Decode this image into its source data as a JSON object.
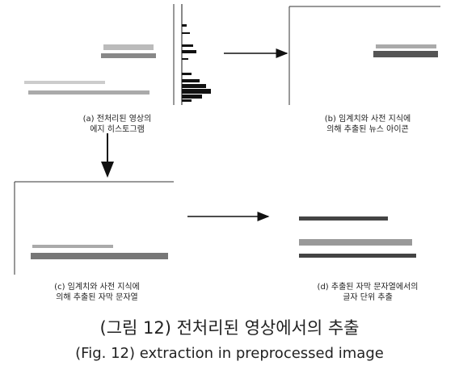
{
  "panels": [
    {
      "caption": [
        "(a) 전처리된 영상의",
        "에지 히스토그램"
      ]
    },
    {
      "caption": [
        "(b) 임계치와 사전 지식에",
        "의해 추출된 뉴스 아이콘"
      ]
    },
    {
      "caption": [
        "(c) 임계치와 사전 지식에",
        "의해 추출된 자막 문자열"
      ]
    },
    {
      "caption": [
        "(d) 추출된 자막 문자열에서의",
        "글자 단위 추출"
      ]
    }
  ],
  "figure_caption": {
    "korean": "(그림 12) 전처리된 영상에서의 추출",
    "english": "(Fig. 12) extraction in preprocessed image"
  }
}
